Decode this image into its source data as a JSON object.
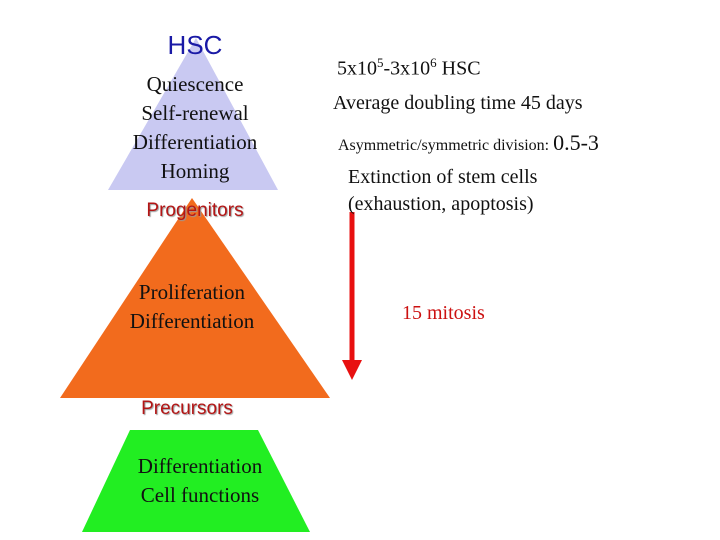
{
  "hsc": {
    "title": "HSC",
    "functions": [
      "Quiescence",
      "Self-renewal",
      "Differentiation",
      "Homing"
    ]
  },
  "progenitors": {
    "title": "Progenitors",
    "functions": [
      "Proliferation",
      "Differentiation"
    ]
  },
  "precursors": {
    "title": "Precursors",
    "functions": [
      "Differentiation",
      "Cell functions"
    ]
  },
  "facts": {
    "count_a": "5x10",
    "count_a_exp": "5",
    "count_b": "-3x10",
    "count_b_exp": "6",
    "count_suffix": " HSC",
    "doubling": "Average doubling time 45 days",
    "division_label": "Asymmetric/symmetric division",
    "division_colon": ": ",
    "division_value": "0.5-3",
    "extinction_line1": "Extinction of stem cells",
    "extinction_line2": "(exhaustion, apoptosis)",
    "mitosis": "15 mitosis"
  },
  "colors": {
    "hsc_triangle": "#c9c9f2",
    "progenitor_triangle": "#f26b1d",
    "precursor_trapezoid": "#22ee22",
    "arrow": "#e81010",
    "hsc_title": "#1a1aa6",
    "stage_title": "#b31515",
    "mitosis_text": "#cc1111"
  }
}
